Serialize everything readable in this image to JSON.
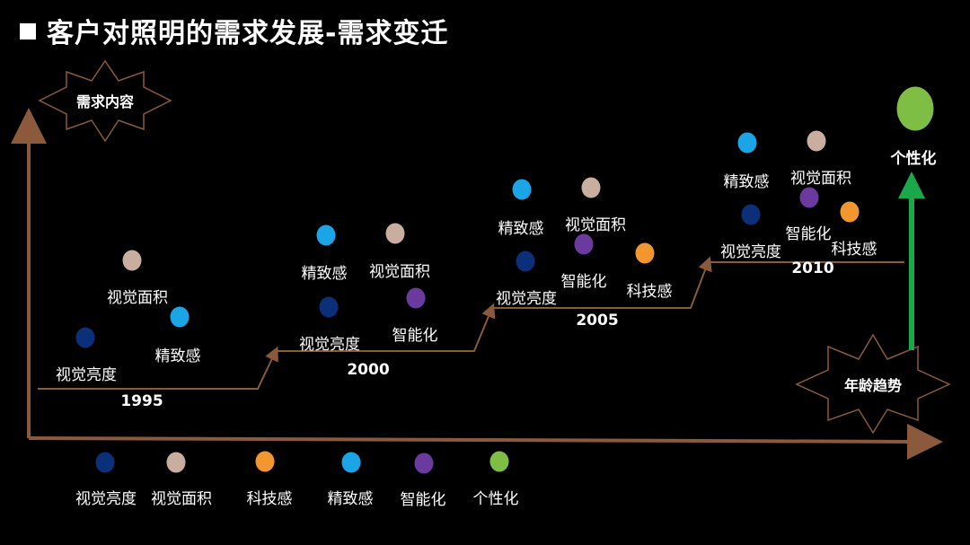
{
  "title": "客户对照明的需求发展-需求变迁",
  "star_top_label": "需求内容",
  "star_bottom_label": "年龄趋势",
  "trend_label": "个性化",
  "colors": {
    "视觉亮度": "#0b2f78",
    "视觉面积": "#c9ad9e",
    "科技感": "#f29630",
    "精致感": "#1aa6e6",
    "智能化": "#6a3a9e",
    "个性化": "#7fbe45",
    "axis": "#8b5a3c",
    "trend_arrow": "#1aa84a"
  },
  "stages": [
    {
      "year": "1995",
      "items": [
        "视觉面积",
        "精致感",
        "视觉亮度"
      ]
    },
    {
      "year": "2000",
      "items": [
        "精致感",
        "视觉面积",
        "视觉亮度",
        "智能化"
      ]
    },
    {
      "year": "2005",
      "items": [
        "精致感",
        "视觉面积",
        "视觉亮度",
        "智能化",
        "科技感"
      ]
    },
    {
      "year": "2010",
      "items": [
        "精致感",
        "视觉面积",
        "视觉亮度",
        "智能化",
        "科技感"
      ]
    }
  ],
  "legend": [
    "视觉亮度",
    "视觉面积",
    "科技感",
    "精致感",
    "智能化",
    "个性化"
  ]
}
